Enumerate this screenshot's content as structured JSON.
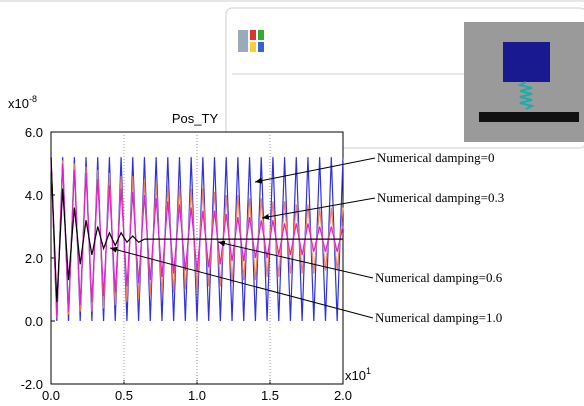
{
  "chart_data": {
    "type": "line",
    "title": "Pos_TY",
    "y_multiplier": {
      "base": "x10",
      "exponent": "-8"
    },
    "x_multiplier": {
      "base": "x10",
      "exponent": "1"
    },
    "xlim": [
      0,
      2.0
    ],
    "ylim": [
      -2.0,
      6.0
    ],
    "xticks": [
      {
        "value": 0,
        "label": "0.0"
      },
      {
        "value": 0.5,
        "label": "0.5"
      },
      {
        "value": 1,
        "label": "1.0"
      },
      {
        "value": 1.5,
        "label": "1.5"
      },
      {
        "value": 2,
        "label": "2.0"
      }
    ],
    "yticks": [
      {
        "value": -2,
        "label": "-2.0"
      },
      {
        "value": 0,
        "label": "0.0"
      },
      {
        "value": 2,
        "label": "2.0"
      },
      {
        "value": 4,
        "label": "4.0"
      },
      {
        "value": 6,
        "label": "6.0"
      }
    ],
    "grid": "x",
    "x": [
      0,
      0.04,
      0.08,
      0.12,
      0.16,
      0.2,
      0.24,
      0.28,
      0.32,
      0.36,
      0.4,
      0.44,
      0.48,
      0.52,
      0.56,
      0.6,
      0.64,
      0.68,
      0.72,
      0.76,
      0.8,
      0.84,
      0.88,
      0.92,
      0.96,
      1.0,
      1.04,
      1.08,
      1.12,
      1.16,
      1.2,
      1.24,
      1.28,
      1.32,
      1.36,
      1.4,
      1.44,
      1.48,
      1.52,
      1.56,
      1.6,
      1.64,
      1.68,
      1.72,
      1.76,
      1.8,
      1.84,
      1.88,
      1.92,
      1.96,
      2.0
    ],
    "series": [
      {
        "name": "Numerical damping=0",
        "color": "#3030e0",
        "values": [
          5.2,
          0.0,
          5.2,
          0.0,
          5.2,
          0.0,
          5.2,
          0.0,
          5.2,
          0.0,
          5.2,
          0.0,
          5.2,
          0.0,
          5.2,
          0.0,
          5.2,
          0.0,
          5.2,
          0.0,
          5.2,
          0.0,
          5.2,
          0.0,
          5.2,
          0.0,
          5.2,
          0.0,
          5.2,
          0.0,
          5.2,
          0.0,
          5.2,
          0.0,
          5.2,
          0.0,
          5.2,
          0.0,
          5.2,
          0.0,
          5.2,
          0.0,
          5.2,
          0.0,
          5.2,
          0.0,
          5.2,
          0.0,
          5.2,
          0.0,
          5.2
        ]
      },
      {
        "name": "Numerical damping=0.3",
        "color": "#f08060",
        "values": [
          5.2,
          0.1,
          5.1,
          0.2,
          5.0,
          0.3,
          4.9,
          0.3,
          4.8,
          0.4,
          4.7,
          0.5,
          4.6,
          0.6,
          4.6,
          0.7,
          4.5,
          0.8,
          4.4,
          0.8,
          4.3,
          0.9,
          4.3,
          1.0,
          4.2,
          1.0,
          4.2,
          1.1,
          4.1,
          1.1,
          4.0,
          1.2,
          4.0,
          1.3,
          3.9,
          1.3,
          3.9,
          1.4,
          3.8,
          1.4,
          3.8,
          1.5,
          3.7,
          1.5,
          3.7,
          1.5,
          3.6,
          1.6,
          3.6,
          1.6,
          3.6
        ]
      },
      {
        "name": "Numerical damping=0.6",
        "color": "#e020d0",
        "values": [
          5.2,
          0.1,
          5.0,
          0.3,
          4.8,
          0.5,
          4.7,
          0.6,
          4.5,
          0.8,
          4.3,
          0.9,
          4.2,
          1.1,
          4.1,
          1.2,
          4.0,
          1.3,
          3.9,
          1.4,
          3.8,
          1.5,
          3.7,
          1.6,
          3.6,
          1.6,
          3.5,
          1.7,
          3.5,
          1.8,
          3.4,
          1.9,
          3.3,
          1.9,
          3.3,
          2.0,
          3.2,
          2.0,
          3.2,
          2.1,
          3.1,
          2.1,
          3.1,
          2.1,
          3.1,
          2.2,
          3.0,
          2.2,
          3.0,
          2.2,
          3.0
        ]
      },
      {
        "name": "Numerical damping=1.0",
        "color": "#000000",
        "values": [
          5.2,
          0.6,
          4.2,
          1.3,
          3.6,
          1.8,
          3.2,
          2.1,
          3.0,
          2.3,
          2.8,
          2.4,
          2.8,
          2.5,
          2.7,
          2.5,
          2.6,
          2.6,
          2.6,
          2.6,
          2.6,
          2.6,
          2.6,
          2.6,
          2.6,
          2.6,
          2.6,
          2.6,
          2.6,
          2.6,
          2.6,
          2.6,
          2.6,
          2.6,
          2.6,
          2.6,
          2.6,
          2.6,
          2.6,
          2.6,
          2.6,
          2.6,
          2.6,
          2.6,
          2.6,
          2.6,
          2.6,
          2.6,
          2.6,
          2.6,
          2.6
        ]
      }
    ]
  }
}
